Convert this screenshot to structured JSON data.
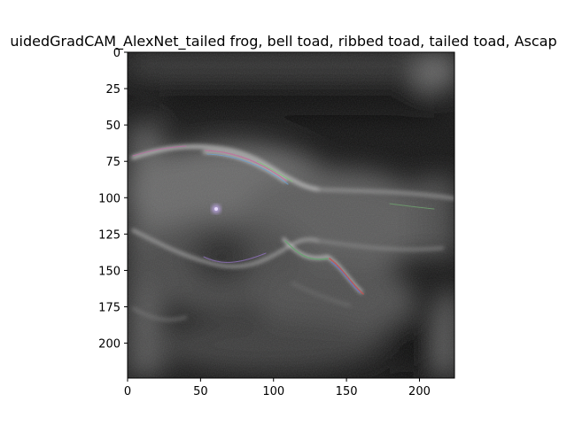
{
  "figure": {
    "title": "uidedGradCAM_AlexNet_tailed frog, bell toad, ribbed toad, tailed toad, Ascap",
    "image_subject": "guided-gradcam-heatmap",
    "x_axis": {
      "range": [
        0,
        224
      ],
      "ticks": [
        {
          "value": 0,
          "label": "0"
        },
        {
          "value": 50,
          "label": "50"
        },
        {
          "value": 100,
          "label": "100"
        },
        {
          "value": 150,
          "label": "150"
        },
        {
          "value": 200,
          "label": "200"
        }
      ]
    },
    "y_axis": {
      "range": [
        0,
        224
      ],
      "ticks": [
        {
          "value": 0,
          "label": "0"
        },
        {
          "value": 25,
          "label": "25"
        },
        {
          "value": 50,
          "label": "50"
        },
        {
          "value": 75,
          "label": "75"
        },
        {
          "value": 100,
          "label": "100"
        },
        {
          "value": 125,
          "label": "125"
        },
        {
          "value": 150,
          "label": "150"
        },
        {
          "value": 175,
          "label": "175"
        },
        {
          "value": 200,
          "label": "200"
        }
      ]
    }
  }
}
